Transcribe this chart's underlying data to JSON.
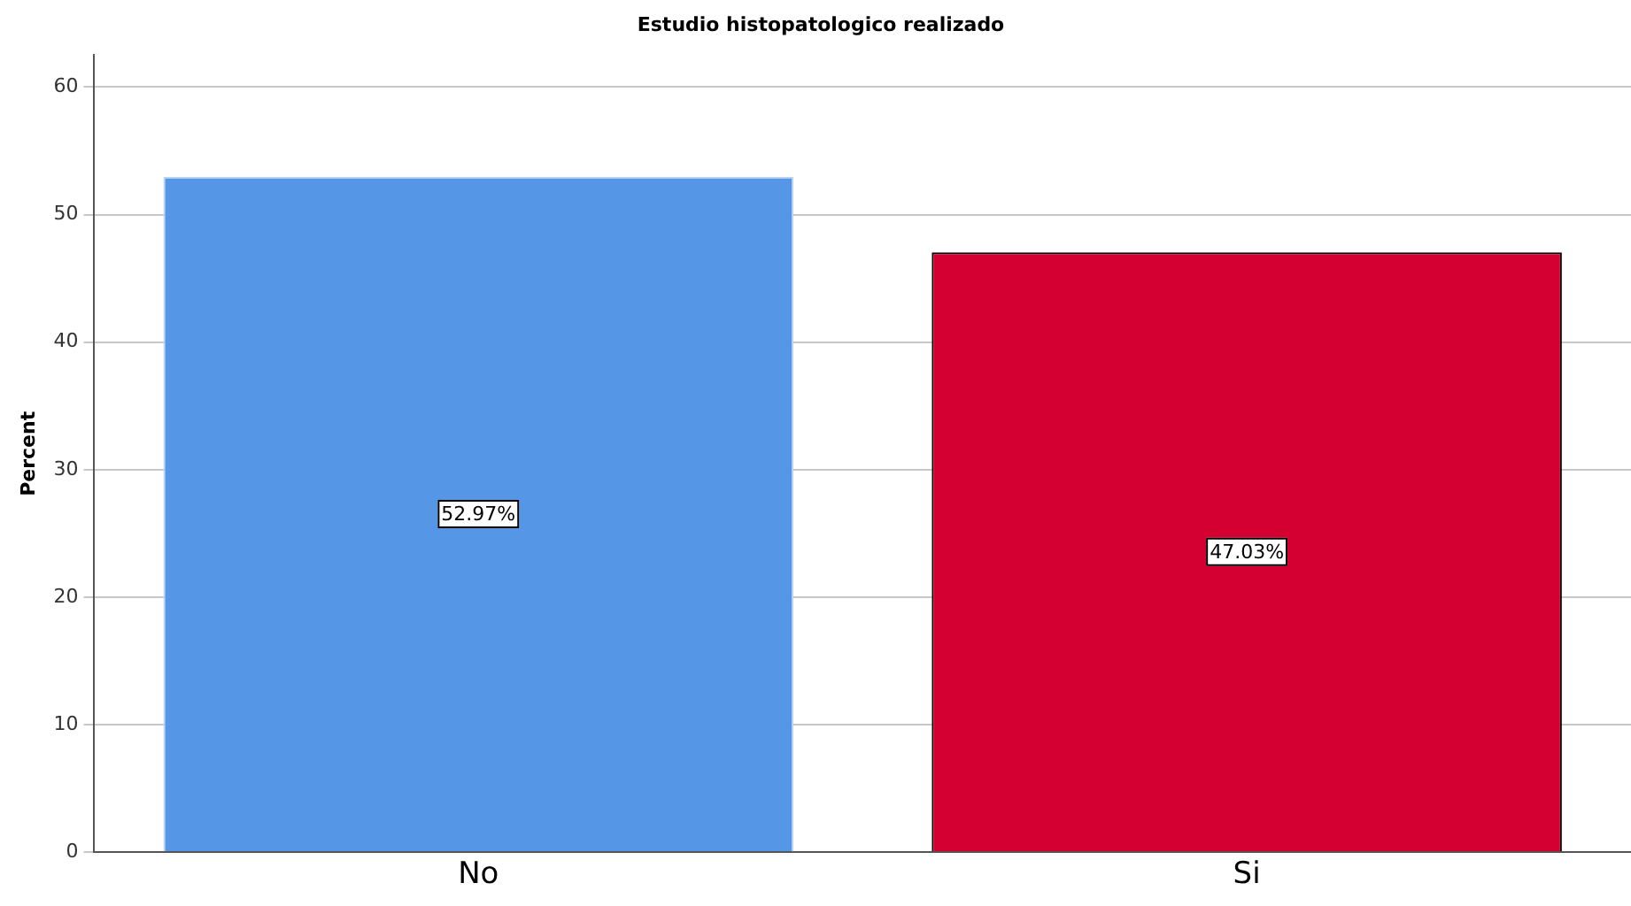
{
  "chart_data": {
    "type": "bar",
    "title": "Estudio histopatologico realizado",
    "ylabel": "Percent",
    "categories": [
      "No",
      "Si"
    ],
    "values": [
      52.97,
      47.03
    ],
    "colors": [
      "#5596e6",
      "#d50032"
    ],
    "value_labels": [
      "52.97%",
      "47.03%"
    ],
    "ylim": [
      0,
      62.5
    ],
    "yticks": [
      0,
      10,
      20,
      30,
      40,
      50,
      60
    ],
    "grid": "y",
    "legend": false
  }
}
